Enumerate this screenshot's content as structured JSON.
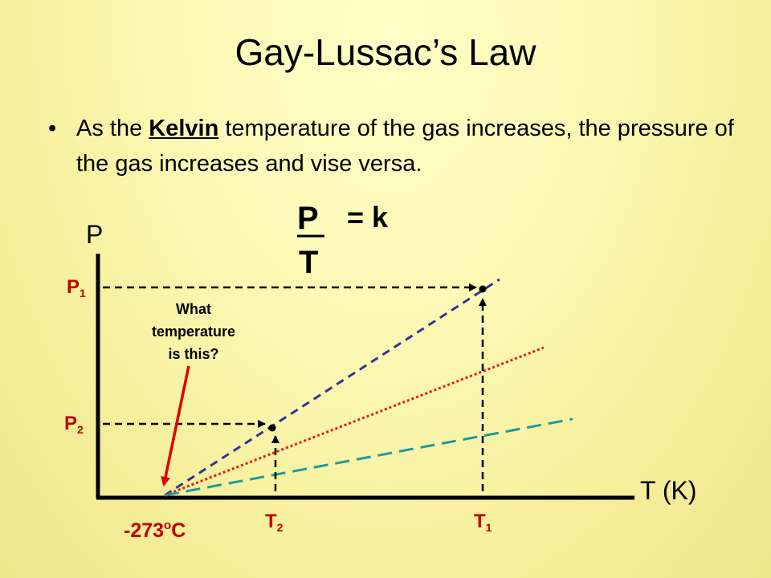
{
  "slide": {
    "title": "Gay-Lussac’s Law",
    "bullet_prefix": "As the ",
    "bullet_underlined": "Kelvin",
    "bullet_rest": " temperature of the gas increases, the pressure of the gas increases and vise versa."
  },
  "formula": {
    "numerator": "P",
    "denominator": "T",
    "equals": "= k"
  },
  "diagram": {
    "y_axis_label": "P",
    "x_axis_label": "T (K)",
    "origin_label": "-273",
    "origin_sup": "o",
    "origin_unit": "C",
    "p1_main": "P",
    "p1_sub": "1",
    "p2_main": "P",
    "p2_sub": "2",
    "t1_main": "T",
    "t1_sub": "1",
    "t2_main": "T",
    "t2_sub": "2",
    "question_line1": "What",
    "question_line2": "temperature",
    "question_line3": "is this?",
    "colors": {
      "axis": "#000000",
      "line_navy": "#333399",
      "line_red": "#e31c1c",
      "line_teal": "#1c9b9b",
      "arrow_red": "#e00000"
    }
  }
}
